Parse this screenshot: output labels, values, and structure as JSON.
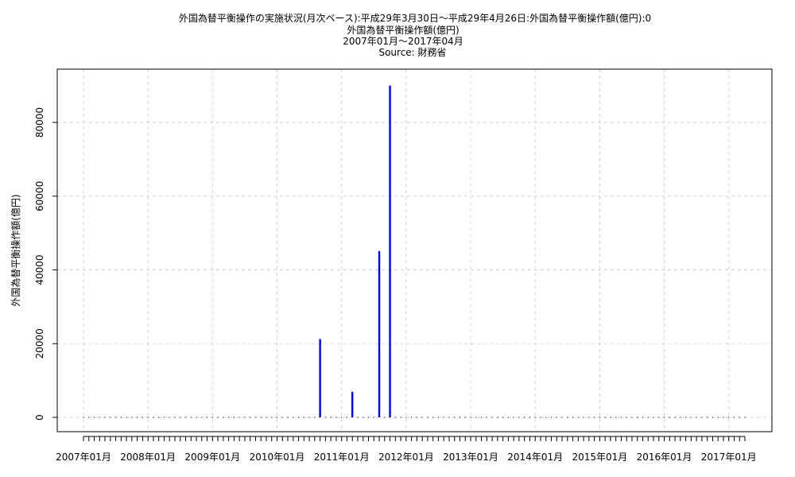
{
  "chart_data": {
    "type": "bar",
    "title": "外国為替平衡操作の実施状況(月次ベース):平成29年3月30日～平成29年4月26日:外国為替平衡操作額(億円):0",
    "subtitle": "外国為替平衡操作額(億円)",
    "period": "2007年01月～2017年04月",
    "source": "Source: 財務省",
    "xlabel": "",
    "ylabel": "外国為替平衡操作額(億円)",
    "ylim": [
      0,
      90000
    ],
    "yticks": [
      0,
      20000,
      40000,
      60000,
      80000
    ],
    "grid": true,
    "xtick_labels": [
      "2007年01月",
      "2008年01月",
      "2009年01月",
      "2010年01月",
      "2011年01月",
      "2012年01月",
      "2013年01月",
      "2014年01月",
      "2015年01月",
      "2016年01月",
      "2017年01月"
    ],
    "x_start": "2007-01",
    "x_end": "2017-04",
    "nonzero": [
      {
        "month": "2010-09",
        "value": 21249
      },
      {
        "month": "2011-03",
        "value": 6925
      },
      {
        "month": "2011-08",
        "value": 45129
      },
      {
        "month": "2011-10",
        "value": 90000
      }
    ],
    "bar_color": "#0000ff"
  }
}
